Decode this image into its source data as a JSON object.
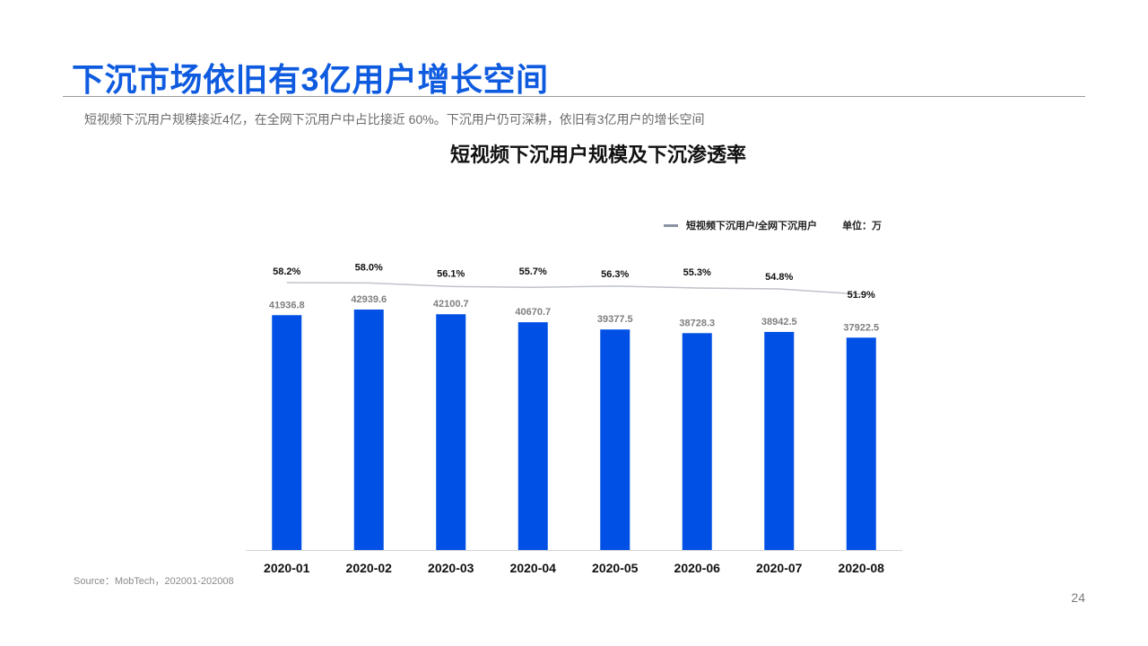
{
  "slide": {
    "title": "下沉市场依旧有3亿用户增长空间",
    "subtitle": "短视频下沉用户规模接近4亿，在全网下沉用户中占比接近  60%。下沉用户仍可深耕，依旧有3亿用户的增长空间",
    "source": "Source：MobTech，202001-202008",
    "page_number": "24"
  },
  "colors": {
    "accent": "#0f5be0",
    "bar": "#0050e6",
    "line": "#bfc3ca",
    "legend_line": "#8a93a3"
  },
  "chart_data": {
    "type": "bar",
    "title": "短视频下沉用户规模及下沉渗透率",
    "unit_label": "单位：万",
    "categories": [
      "2020-01",
      "2020-02",
      "2020-03",
      "2020-04",
      "2020-05",
      "2020-06",
      "2020-07",
      "2020-08"
    ],
    "series": [
      {
        "values": [
          41936.8,
          42939.6,
          42100.7,
          40670.7,
          39377.5,
          38728.3,
          38942.5,
          37922.5
        ],
        "labels": [
          "41936.8",
          "42939.6",
          "42100.7",
          "40670.7",
          "39377.5",
          "38728.3",
          "38942.5",
          "37922.5"
        ]
      },
      {
        "name": "短视频下沉用户/全网下沉用户",
        "type": "line",
        "values": [
          58.2,
          58.0,
          56.1,
          55.7,
          56.3,
          55.3,
          54.8,
          51.9
        ],
        "labels": [
          "58.2%",
          "58.0%",
          "56.1%",
          "55.7%",
          "56.3%",
          "55.3%",
          "54.8%",
          "51.9%"
        ]
      }
    ],
    "grid": false,
    "legend_position": "top-right"
  }
}
